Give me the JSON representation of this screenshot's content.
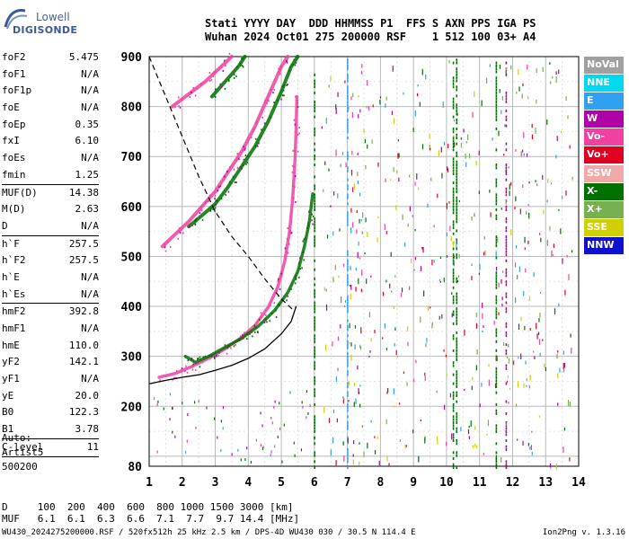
{
  "logo": {
    "line1": "Lowell",
    "line2": "DIGISONDE"
  },
  "header": {
    "line1": "Stati YYYY DAY  DDD HHMMSS P1  FFS S AXN PPS IGA PS",
    "line2": "Wuhan 2024 Oct01 275 200000 RSF    1 512 100 03+ A4"
  },
  "params": [
    {
      "k": "foF2",
      "v": "5.475"
    },
    {
      "k": "foF1",
      "v": "N/A"
    },
    {
      "k": "foF1p",
      "v": "N/A"
    },
    {
      "k": "foE",
      "v": "N/A"
    },
    {
      "k": "foEp",
      "v": "0.35"
    },
    {
      "k": "fxI",
      "v": "6.10"
    },
    {
      "k": "foEs",
      "v": "N/A"
    },
    {
      "k": "fmin",
      "v": "1.25"
    },
    {
      "sep": true
    },
    {
      "k": "MUF(D)",
      "v": "14.38"
    },
    {
      "k": "M(D)",
      "v": "2.63"
    },
    {
      "k": "D",
      "v": "N/A"
    },
    {
      "sep": true
    },
    {
      "k": "h`F",
      "v": "257.5"
    },
    {
      "k": "h`F2",
      "v": "257.5"
    },
    {
      "k": "h`E",
      "v": "N/A"
    },
    {
      "k": "h`Es",
      "v": "N/A"
    },
    {
      "sep": true
    },
    {
      "k": "hmF2",
      "v": "392.8"
    },
    {
      "k": "hmF1",
      "v": "N/A"
    },
    {
      "k": "hmE",
      "v": "110.0"
    },
    {
      "k": "yF2",
      "v": "142.1"
    },
    {
      "k": "yF1",
      "v": "N/A"
    },
    {
      "k": "yE",
      "v": "20.0"
    },
    {
      "k": "B0",
      "v": "122.3"
    },
    {
      "k": "B1",
      "v": "3.78"
    },
    {
      "sep": true
    },
    {
      "k": "C-level",
      "v": "11"
    },
    {
      "sep": true
    }
  ],
  "auto": {
    "line1": "Auto:",
    "line2": "Artist5",
    "line3": "500200"
  },
  "footer": {
    "line1": "D     100  200  400  600  800 1000 1500 3000 [km]",
    "line2": "MUF   6.1  6.1  6.3  6.6  7.1  7.7  9.7 14.4 [MHz]",
    "line3": "WU430_2024275200000.RSF / 520fx512h 25 kHz 2.5 km / DPS-4D WU430 030 / 30.5 N 114.4 E",
    "version": "Ion2Png v. 1.3.16"
  },
  "legend": [
    {
      "label": "NoVal",
      "color": "#a0a0a0"
    },
    {
      "label": "NNE",
      "color": "#00d8f0"
    },
    {
      "label": "E",
      "color": "#30a0f0"
    },
    {
      "label": "W",
      "color": "#b000a8"
    },
    {
      "label": "Vo-",
      "color": "#f040a0"
    },
    {
      "label": "Vo+",
      "color": "#e00020"
    },
    {
      "label": "SSW",
      "color": "#f0a8a8"
    },
    {
      "label": "X-",
      "color": "#007000"
    },
    {
      "label": "X+",
      "color": "#78b050"
    },
    {
      "label": "SSE",
      "color": "#d0d000"
    },
    {
      "label": "NNW",
      "color": "#1010d0"
    }
  ],
  "chart_data": {
    "type": "scatter",
    "xlabel": "",
    "ylabel": "",
    "xlim": [
      1,
      14
    ],
    "ylim": [
      80,
      900
    ],
    "x_ticks": [
      "1",
      "2",
      "3",
      "4",
      "5",
      "6",
      "7",
      "8",
      "9",
      "10",
      "11",
      "12",
      "13",
      "14"
    ],
    "y_ticks": [
      "80",
      "200",
      "300",
      "400",
      "500",
      "600",
      "700",
      "800",
      "900"
    ],
    "series": [
      {
        "mode": "O",
        "color": "#f040a0",
        "points": [
          [
            1.3,
            258
          ],
          [
            1.8,
            266
          ],
          [
            2.3,
            280
          ],
          [
            2.8,
            296
          ],
          [
            3.3,
            315
          ],
          [
            3.8,
            338
          ],
          [
            4.2,
            362
          ],
          [
            4.6,
            398
          ],
          [
            4.9,
            440
          ],
          [
            5.1,
            490
          ],
          [
            5.25,
            550
          ],
          [
            5.35,
            620
          ],
          [
            5.42,
            700
          ],
          [
            5.45,
            760
          ],
          [
            5.47,
            820
          ]
        ]
      },
      {
        "mode": "X",
        "color": "#007000",
        "points": [
          [
            2.1,
            300
          ],
          [
            2.4,
            288
          ],
          [
            2.8,
            300
          ],
          [
            3.3,
            318
          ],
          [
            3.8,
            336
          ],
          [
            4.3,
            360
          ],
          [
            4.8,
            392
          ],
          [
            5.2,
            428
          ],
          [
            5.5,
            470
          ],
          [
            5.7,
            520
          ],
          [
            5.85,
            570
          ],
          [
            5.95,
            625
          ]
        ]
      },
      {
        "mode": "O2",
        "color": "#f040a0",
        "points": [
          [
            1.4,
            520
          ],
          [
            1.8,
            545
          ],
          [
            2.2,
            570
          ],
          [
            2.6,
            600
          ],
          [
            3.0,
            630
          ],
          [
            3.4,
            670
          ],
          [
            3.8,
            710
          ],
          [
            4.2,
            760
          ],
          [
            4.6,
            820
          ],
          [
            5.0,
            880
          ],
          [
            5.2,
            900
          ]
        ]
      },
      {
        "mode": "X2",
        "color": "#007000",
        "points": [
          [
            2.2,
            560
          ],
          [
            2.6,
            582
          ],
          [
            3.0,
            605
          ],
          [
            3.4,
            640
          ],
          [
            3.8,
            680
          ],
          [
            4.2,
            720
          ],
          [
            4.6,
            770
          ],
          [
            5.0,
            830
          ],
          [
            5.3,
            880
          ],
          [
            5.5,
            900
          ]
        ]
      },
      {
        "mode": "O3",
        "color": "#f040a0",
        "points": [
          [
            1.7,
            800
          ],
          [
            2.2,
            825
          ],
          [
            2.7,
            850
          ],
          [
            3.1,
            875
          ],
          [
            3.5,
            900
          ]
        ]
      },
      {
        "mode": "X3",
        "color": "#007000",
        "points": [
          [
            2.9,
            820
          ],
          [
            3.3,
            850
          ],
          [
            3.7,
            880
          ],
          [
            3.9,
            900
          ]
        ]
      }
    ],
    "profile": {
      "color": "#000000",
      "points": [
        [
          1,
          245
        ],
        [
          1.5,
          252
        ],
        [
          2,
          258
        ],
        [
          2.5,
          263
        ],
        [
          3,
          272
        ],
        [
          3.5,
          282
        ],
        [
          4,
          296
        ],
        [
          4.5,
          315
        ],
        [
          5,
          345
        ],
        [
          5.3,
          370
        ],
        [
          5.45,
          400
        ]
      ]
    },
    "muf_curve": {
      "color": "#000000",
      "style": "dashed",
      "points": [
        [
          1.0,
          900
        ],
        [
          1.5,
          820
        ],
        [
          2.0,
          740
        ],
        [
          2.5,
          660
        ],
        [
          3.0,
          590
        ],
        [
          3.5,
          540
        ],
        [
          4.0,
          500
        ],
        [
          4.5,
          455
        ],
        [
          5.0,
          415
        ],
        [
          5.4,
          390
        ]
      ]
    },
    "noise_columns": [
      [
        7.0,
        "#30a0f0"
      ],
      [
        10.2,
        "#007000"
      ],
      [
        10.3,
        "#007000"
      ],
      [
        11.5,
        "#007000"
      ],
      [
        11.8,
        "#b000a8"
      ],
      [
        6.0,
        "#007000"
      ]
    ]
  }
}
